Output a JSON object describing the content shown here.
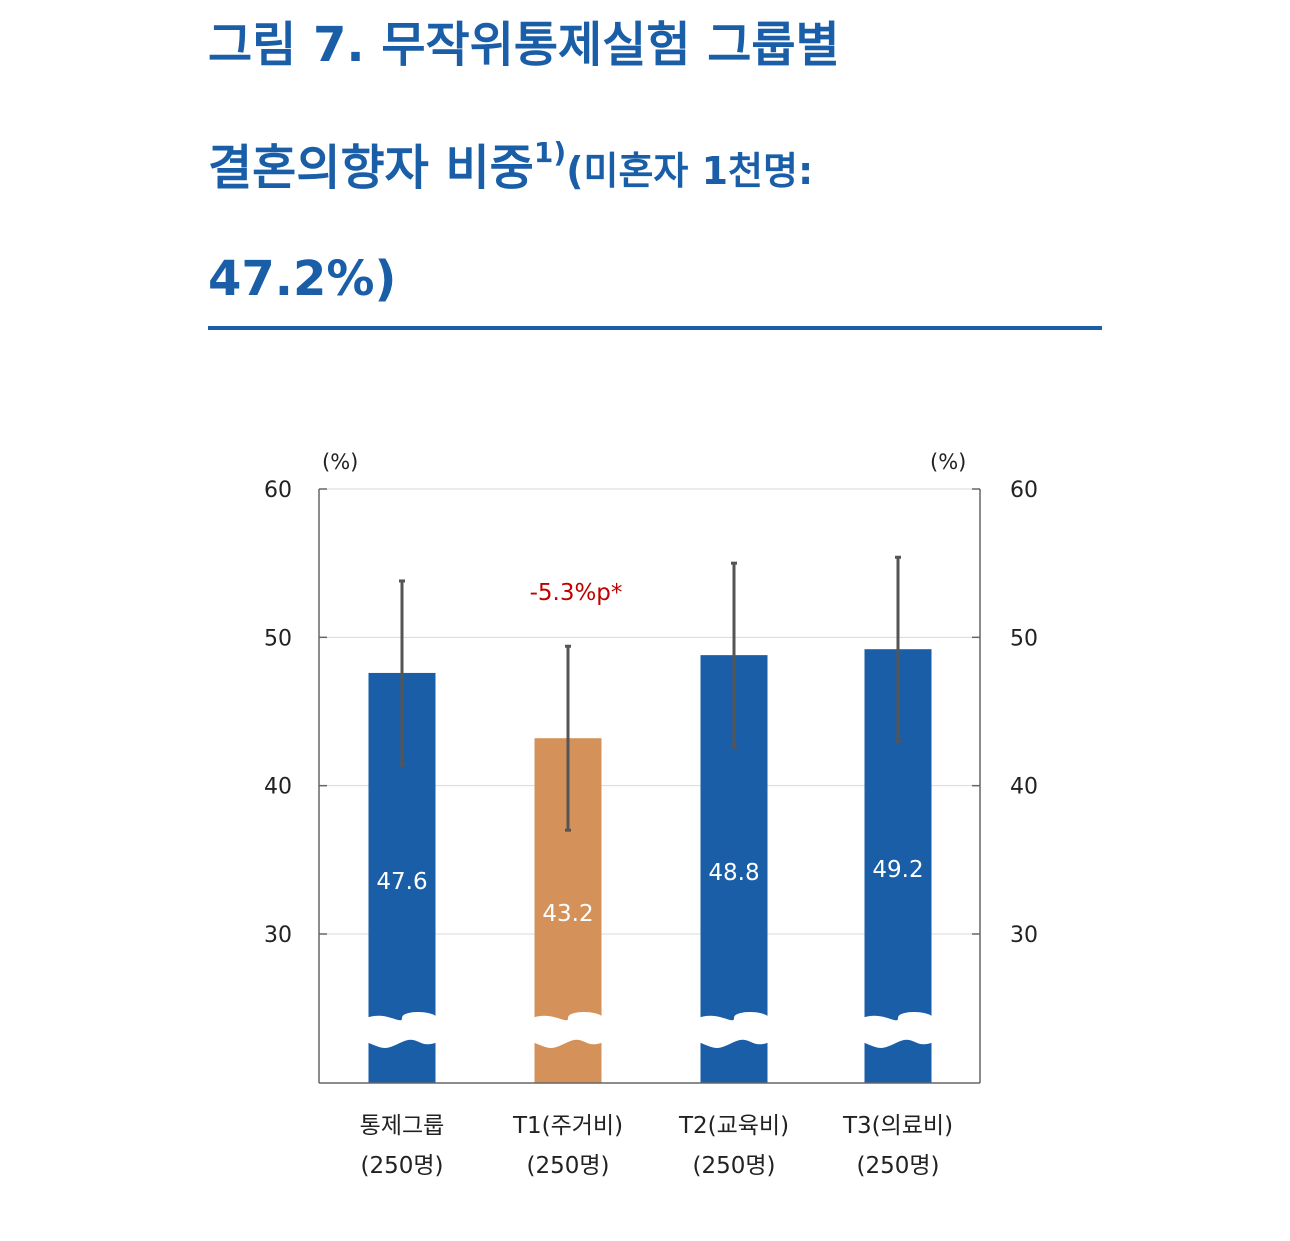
{
  "title": {
    "line1": "그림 7. 무작위통제실험 그룹별",
    "line2_main": "결혼의향자 비중",
    "line2_sup": "1)",
    "line2_sub": "(미혼자 1천명:",
    "line3": "47.2%)"
  },
  "colors": {
    "title": "#1a5ea8",
    "bar_primary": "#1a5ea8",
    "bar_highlight": "#d4925a",
    "error_bar": "#555555",
    "annotation": "#c00000"
  },
  "chart_data": {
    "type": "bar",
    "categories": [
      "통제그룹",
      "T1(주거비)",
      "T2(교육비)",
      "T3(의료비)"
    ],
    "category_sublabels": [
      "(250명)",
      "(250명)",
      "(250명)",
      "(250명)"
    ],
    "values": [
      47.6,
      43.2,
      48.8,
      49.2
    ],
    "value_labels": [
      "47.6",
      "43.2",
      "48.8",
      "49.2"
    ],
    "error_upper": [
      53.8,
      49.4,
      55.0,
      55.4
    ],
    "error_lower": [
      41.4,
      37.0,
      42.6,
      43.0
    ],
    "highlight_index": 1,
    "annotation": {
      "text": "-5.3%p*",
      "category_index": 1
    },
    "y_unit_left": "(%)",
    "y_unit_right": "(%)",
    "yticks": [
      30,
      40,
      50,
      60
    ],
    "ylim": [
      20,
      60
    ],
    "axis_break": true,
    "grid": true,
    "dual_axis": true
  }
}
